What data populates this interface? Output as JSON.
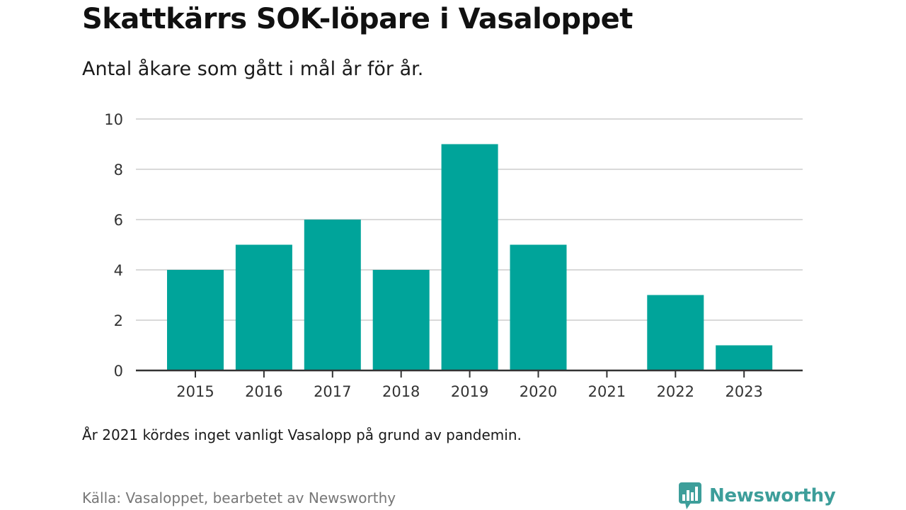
{
  "header": {
    "title": "Skattkärrs SOK-löpare i Vasaloppet",
    "subtitle": "Antal åkare som gått i mål år för år."
  },
  "footer": {
    "note": "År 2021 kördes inget vanligt Vasalopp på grund av pandemin.",
    "source": "Källa: Vasaloppet, bearbetet av Newsworthy",
    "brand": "Newsworthy"
  },
  "colors": {
    "bar": "#00a49a",
    "grid": "#d9d9d9",
    "axis": "#333333",
    "brand": "#3d9e9a"
  },
  "icons": {
    "brand": "newsworthy-chart-bubble-icon"
  },
  "chart_data": {
    "type": "bar",
    "categories": [
      "2015",
      "2016",
      "2017",
      "2018",
      "2019",
      "2020",
      "2021",
      "2022",
      "2023"
    ],
    "values": [
      4,
      5,
      6,
      4,
      9,
      5,
      0,
      3,
      1
    ],
    "ylim": [
      0,
      10
    ],
    "yticks": [
      0,
      2,
      4,
      6,
      8,
      10
    ],
    "grid": true,
    "legend": "none"
  }
}
